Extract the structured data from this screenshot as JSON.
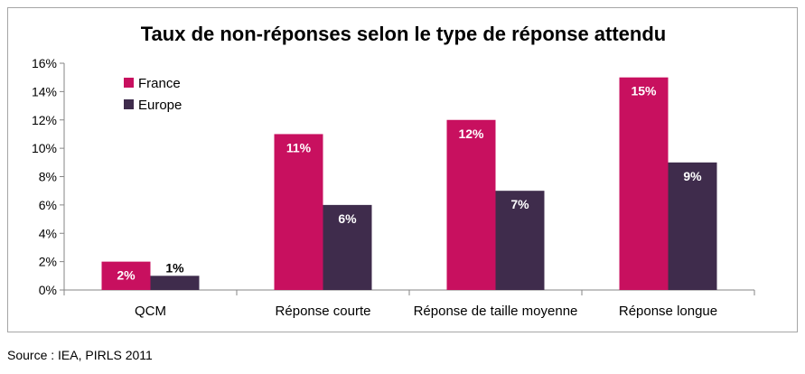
{
  "chart_data": {
    "type": "bar",
    "title": "Taux de non-réponses selon le type de réponse attendu",
    "categories": [
      "QCM",
      "Réponse courte",
      "Réponse de taille moyenne",
      "Réponse longue"
    ],
    "series": [
      {
        "name": "France",
        "values": [
          2,
          11,
          12,
          15
        ],
        "labels": [
          "2%",
          "11%",
          "12%",
          "15%"
        ],
        "color": "#c8105f"
      },
      {
        "name": "Europe",
        "values": [
          1,
          6,
          7,
          9
        ],
        "labels": [
          "1%",
          "6%",
          "7%",
          "9%"
        ],
        "color": "#3f2c4c"
      }
    ],
    "ylim": [
      0,
      16
    ],
    "y_ticks": [
      "0%",
      "2%",
      "4%",
      "6%",
      "8%",
      "10%",
      "12%",
      "14%",
      "16%"
    ],
    "legend_position": "top-left",
    "grid": false
  },
  "source": "Source : IEA, PIRLS 2011"
}
